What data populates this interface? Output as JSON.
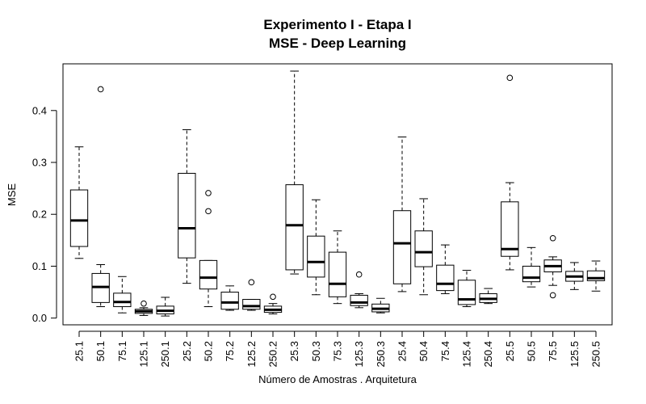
{
  "chart_data": {
    "type": "boxplot",
    "title": "Experimento I - Etapa I",
    "subtitle": "MSE - Deep Learning",
    "xlabel": "Número de Amostras . Arquitetura",
    "ylabel": "MSE",
    "ylim": [
      -0.013,
      0.49
    ],
    "yticks": [
      "0.0",
      "0.1",
      "0.2",
      "0.3",
      "0.4"
    ],
    "grid": false,
    "categories": [
      "25.1",
      "50.1",
      "75.1",
      "125.1",
      "250.1",
      "25.2",
      "50.2",
      "75.2",
      "125.2",
      "250.2",
      "25.3",
      "50.3",
      "75.3",
      "125.3",
      "250.3",
      "25.4",
      "50.4",
      "75.4",
      "125.4",
      "250.4",
      "25.5",
      "50.5",
      "75.5",
      "125.5",
      "250.5"
    ],
    "boxes": [
      {
        "min": 0.115,
        "q1": 0.138,
        "median": 0.188,
        "q3": 0.247,
        "max": 0.33,
        "outliers": []
      },
      {
        "min": 0.022,
        "q1": 0.03,
        "median": 0.06,
        "q3": 0.086,
        "max": 0.103,
        "outliers": [
          0.441
        ]
      },
      {
        "min": 0.01,
        "q1": 0.022,
        "median": 0.031,
        "q3": 0.048,
        "max": 0.08,
        "outliers": []
      },
      {
        "min": 0.005,
        "q1": 0.009,
        "median": 0.013,
        "q3": 0.017,
        "max": 0.02,
        "outliers": [
          0.028
        ]
      },
      {
        "min": 0.004,
        "q1": 0.008,
        "median": 0.014,
        "q3": 0.023,
        "max": 0.04,
        "outliers": []
      },
      {
        "min": 0.067,
        "q1": 0.116,
        "median": 0.173,
        "q3": 0.279,
        "max": 0.363,
        "outliers": []
      },
      {
        "min": 0.022,
        "q1": 0.056,
        "median": 0.078,
        "q3": 0.111,
        "max": 0.111,
        "outliers": [
          0.206,
          0.241
        ]
      },
      {
        "min": 0.015,
        "q1": 0.017,
        "median": 0.03,
        "q3": 0.05,
        "max": 0.062,
        "outliers": []
      },
      {
        "min": 0.015,
        "q1": 0.017,
        "median": 0.023,
        "q3": 0.036,
        "max": 0.036,
        "outliers": [
          0.069
        ]
      },
      {
        "min": 0.008,
        "q1": 0.011,
        "median": 0.016,
        "q3": 0.023,
        "max": 0.028,
        "outliers": [
          0.041
        ]
      },
      {
        "min": 0.085,
        "q1": 0.093,
        "median": 0.179,
        "q3": 0.257,
        "max": 0.476,
        "outliers": []
      },
      {
        "min": 0.045,
        "q1": 0.079,
        "median": 0.108,
        "q3": 0.158,
        "max": 0.228,
        "outliers": []
      },
      {
        "min": 0.028,
        "q1": 0.041,
        "median": 0.066,
        "q3": 0.127,
        "max": 0.168,
        "outliers": []
      },
      {
        "min": 0.02,
        "q1": 0.024,
        "median": 0.03,
        "q3": 0.044,
        "max": 0.047,
        "outliers": [
          0.084
        ]
      },
      {
        "min": 0.01,
        "q1": 0.012,
        "median": 0.018,
        "q3": 0.027,
        "max": 0.038,
        "outliers": []
      },
      {
        "min": 0.051,
        "q1": 0.066,
        "median": 0.144,
        "q3": 0.207,
        "max": 0.349,
        "outliers": []
      },
      {
        "min": 0.045,
        "q1": 0.099,
        "median": 0.127,
        "q3": 0.168,
        "max": 0.23,
        "outliers": []
      },
      {
        "min": 0.047,
        "q1": 0.053,
        "median": 0.066,
        "q3": 0.102,
        "max": 0.141,
        "outliers": []
      },
      {
        "min": 0.022,
        "q1": 0.026,
        "median": 0.036,
        "q3": 0.073,
        "max": 0.092,
        "outliers": []
      },
      {
        "min": 0.028,
        "q1": 0.03,
        "median": 0.037,
        "q3": 0.047,
        "max": 0.057,
        "outliers": []
      },
      {
        "min": 0.093,
        "q1": 0.119,
        "median": 0.133,
        "q3": 0.224,
        "max": 0.261,
        "outliers": [
          0.463
        ]
      },
      {
        "min": 0.06,
        "q1": 0.07,
        "median": 0.078,
        "q3": 0.1,
        "max": 0.136,
        "outliers": []
      },
      {
        "min": 0.063,
        "q1": 0.089,
        "median": 0.1,
        "q3": 0.112,
        "max": 0.118,
        "outliers": [
          0.044,
          0.154
        ]
      },
      {
        "min": 0.055,
        "q1": 0.071,
        "median": 0.08,
        "q3": 0.09,
        "max": 0.107,
        "outliers": []
      },
      {
        "min": 0.052,
        "q1": 0.072,
        "median": 0.077,
        "q3": 0.091,
        "max": 0.11,
        "outliers": []
      }
    ]
  }
}
